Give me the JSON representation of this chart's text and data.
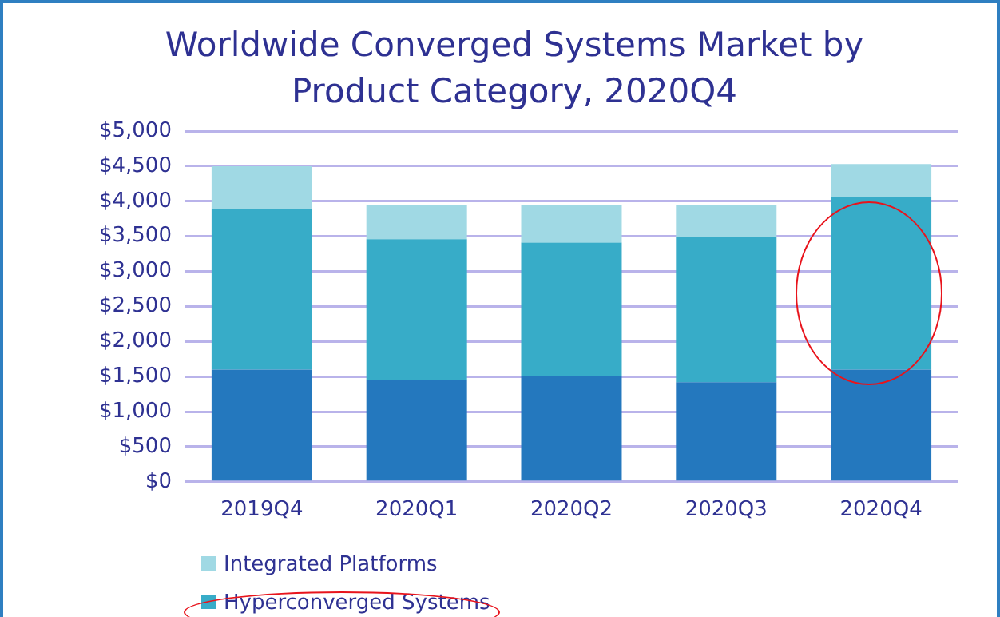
{
  "chart_data": {
    "type": "bar",
    "title": "Worldwide Converged Systems Market by Product Category, 2020Q4",
    "categories": [
      "2019Q4",
      "2020Q1",
      "2020Q2",
      "2020Q3",
      "2020Q4"
    ],
    "stacked": true,
    "series": [
      {
        "color": "#2478be",
        "values": [
          1600,
          1450,
          1510,
          1420,
          1600
        ]
      },
      {
        "name": "Hyperconverged Systems",
        "color": "#37acc8",
        "values": [
          2290,
          2010,
          1900,
          2070,
          2460
        ]
      },
      {
        "name": "Integrated Platforms",
        "color": "#a0d9e4",
        "values": [
          610,
          490,
          540,
          460,
          470
        ]
      }
    ],
    "ylim": [
      0,
      5000
    ],
    "yticks": [
      {
        "value": 0,
        "label": "$0"
      },
      {
        "value": 500,
        "label": "$500"
      },
      {
        "value": 1000,
        "label": "$1,000"
      },
      {
        "value": 1500,
        "label": "$1,500"
      },
      {
        "value": 2000,
        "label": "$2,000"
      },
      {
        "value": 2500,
        "label": "$2,500"
      },
      {
        "value": 3000,
        "label": "$3,000"
      },
      {
        "value": 3500,
        "label": "$3,500"
      },
      {
        "value": 4000,
        "label": "$4,000"
      },
      {
        "value": 4500,
        "label": "$4,500"
      },
      {
        "value": 5000,
        "label": "$5,000"
      }
    ],
    "grid": "y",
    "legend": "bottom left"
  }
}
